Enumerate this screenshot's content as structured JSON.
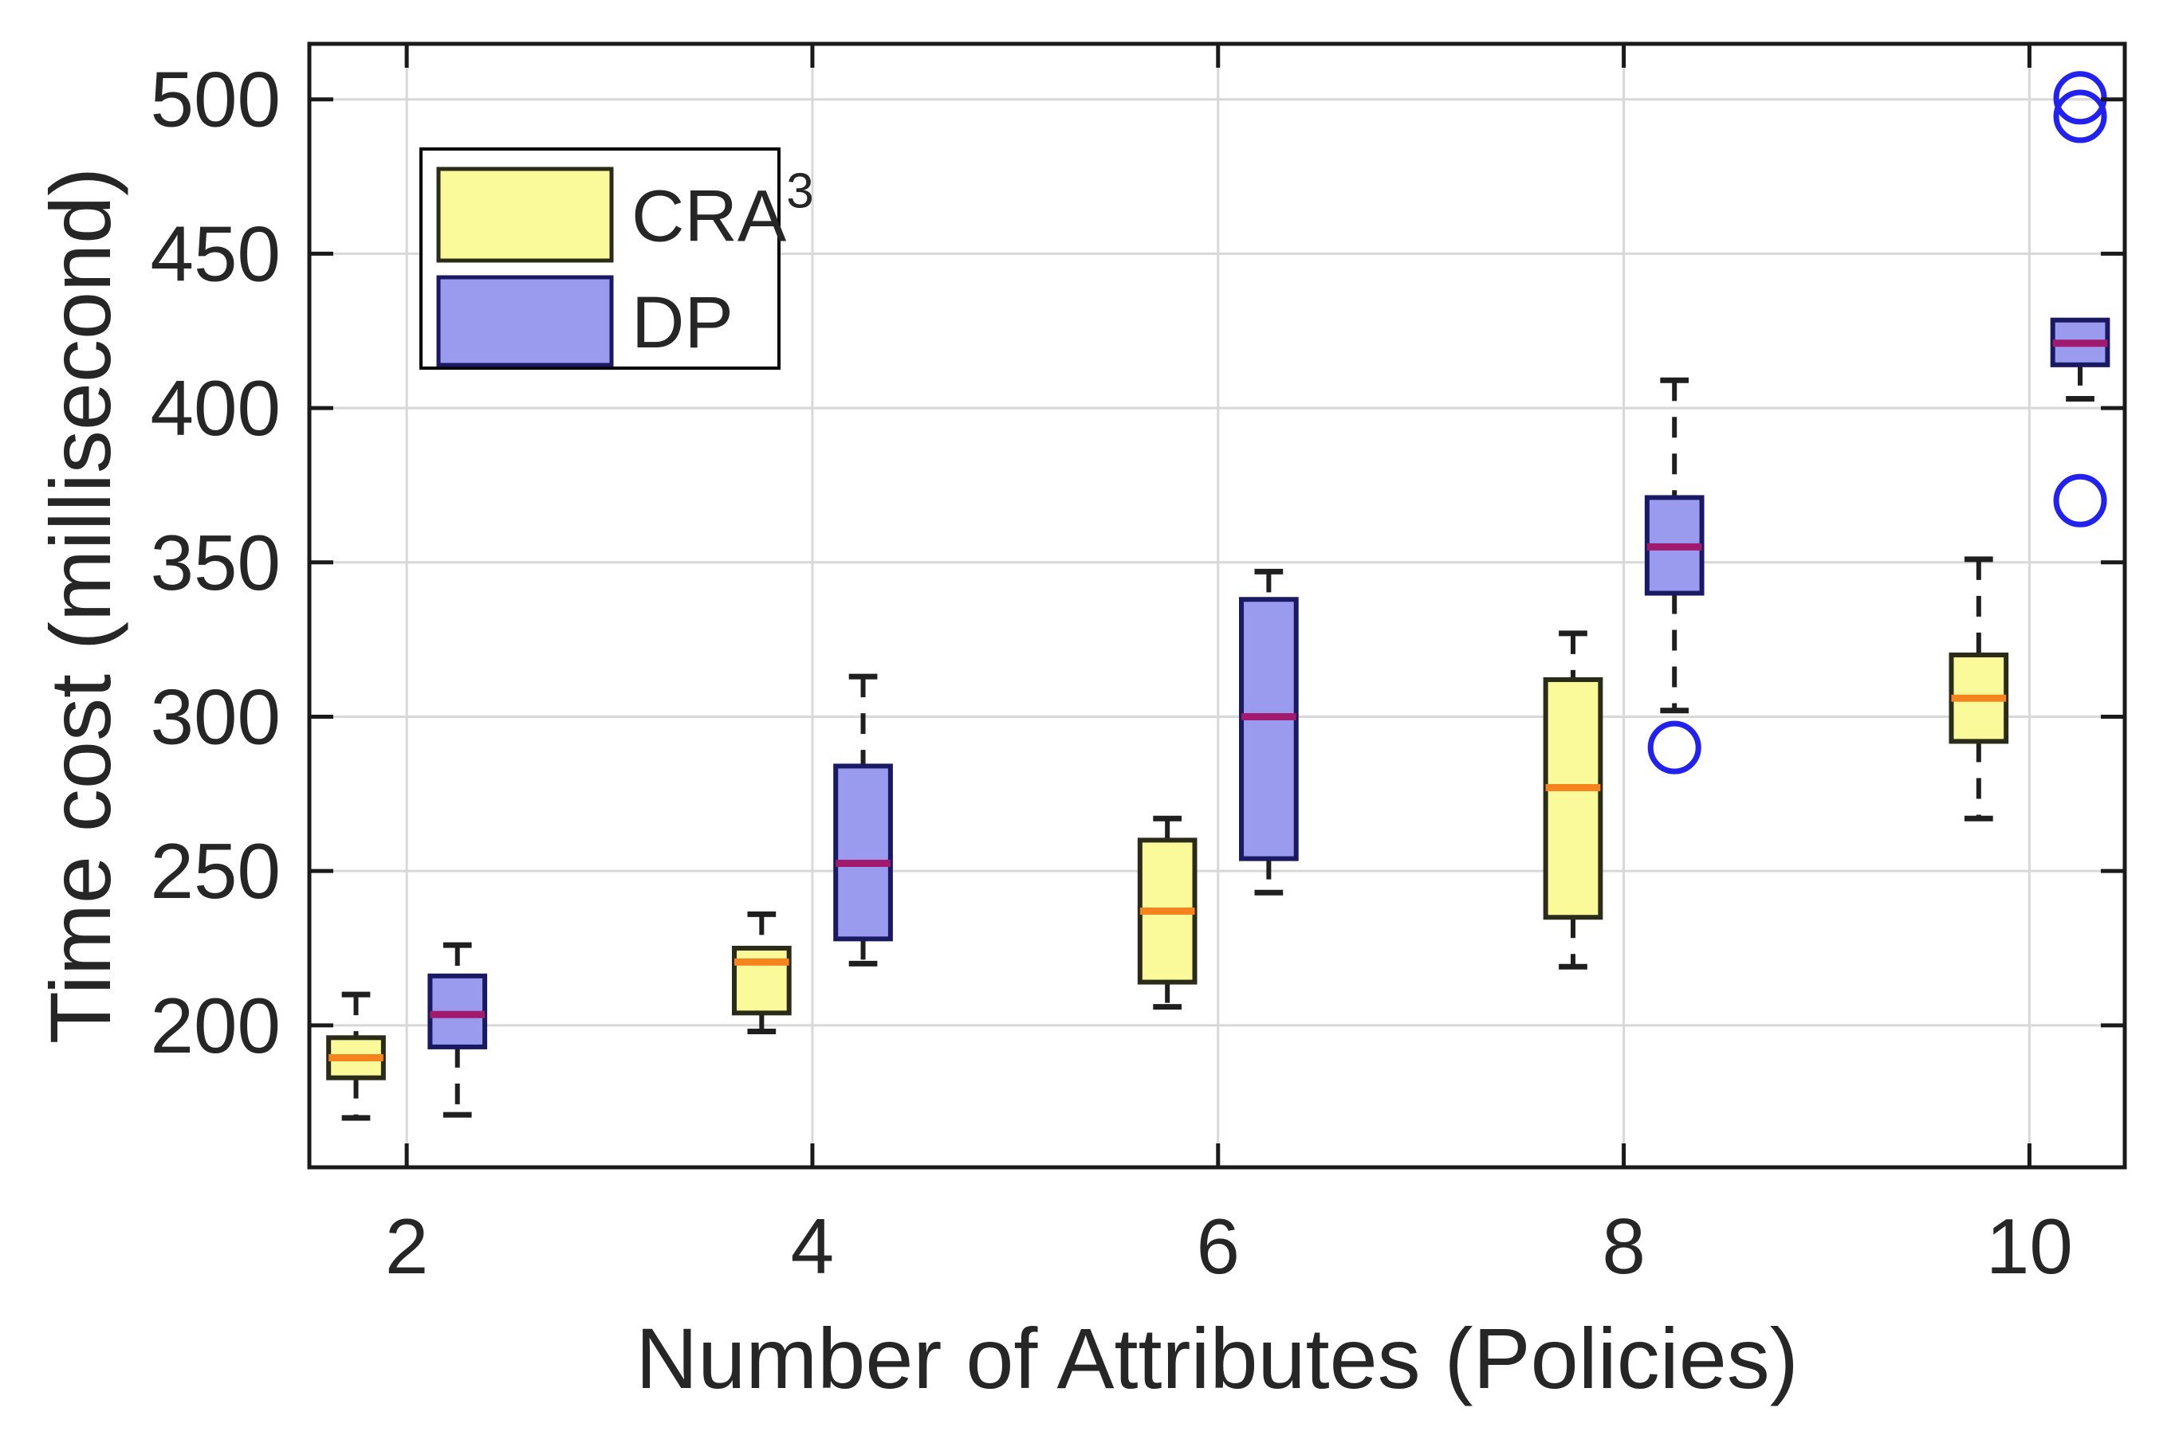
{
  "figure": {
    "kind": "matlab-style grouped boxplot",
    "background": "#ffffff"
  },
  "axes": {
    "xlabel": "Number of Attributes (Policies)",
    "ylabel": "Time cost (millisecond)",
    "x_ticks": [
      2,
      4,
      6,
      8,
      10
    ],
    "x_tick_labels": [
      "2",
      "4",
      "6",
      "8",
      "10"
    ],
    "y_ticks": [
      200,
      250,
      300,
      350,
      400,
      450,
      500
    ],
    "y_tick_labels": [
      "200",
      "250",
      "300",
      "350",
      "400",
      "450",
      "500"
    ],
    "xlim": [
      1.52,
      10.47
    ],
    "ylim": [
      154,
      518
    ],
    "grid": true,
    "box_on": true,
    "tick_direction": "in"
  },
  "colors": {
    "background": "#ffffff",
    "grid": "#d8d8d8",
    "spine": "#1a1a1a",
    "tick": "#1a1a1a",
    "text": "#262626",
    "whisker": "#1f1f1f",
    "outlier_stroke": "#2222ee"
  },
  "legend": {
    "position": "upper-left",
    "entries": [
      {
        "label": "CRA",
        "superscript": "3",
        "swatch_fill": "#fafa9b",
        "swatch_edge": "#2b2b1a"
      },
      {
        "label": "DP",
        "superscript": "",
        "swatch_fill": "#9a9aef",
        "swatch_edge": "#191964"
      }
    ]
  },
  "chart_data": {
    "type": "boxplot",
    "title": "",
    "xlabel": "Number of Attributes (Policies)",
    "ylabel": "Time cost (millisecond)",
    "categories": [
      2,
      4,
      6,
      8,
      10
    ],
    "group_offset_units": 0.25,
    "box_width_units": 0.27,
    "series": [
      {
        "name": "CRA3",
        "legend_label": "CRA",
        "legend_superscript": "3",
        "fill": "#fafa9b",
        "edge": "#2b2b1a",
        "median_color": "#f5831e",
        "side": -1,
        "boxes": [
          {
            "x": 2,
            "whislo": 170,
            "q1": 183,
            "med": 189.5,
            "q3": 196,
            "whishi": 210,
            "outliers": []
          },
          {
            "x": 4,
            "whislo": 198,
            "q1": 204,
            "med": 220.5,
            "q3": 225,
            "whishi": 236,
            "outliers": []
          },
          {
            "x": 6,
            "whislo": 206,
            "q1": 214,
            "med": 237,
            "q3": 260,
            "whishi": 267,
            "outliers": []
          },
          {
            "x": 8,
            "whislo": 219,
            "q1": 235,
            "med": 277,
            "q3": 312,
            "whishi": 327,
            "outliers": []
          },
          {
            "x": 10,
            "whislo": 267,
            "q1": 292,
            "med": 306,
            "q3": 320,
            "whishi": 351,
            "outliers": []
          }
        ]
      },
      {
        "name": "DP",
        "legend_label": "DP",
        "legend_superscript": "",
        "fill": "#9a9aef",
        "edge": "#191964",
        "median_color": "#a11a6e",
        "side": 1,
        "boxes": [
          {
            "x": 2,
            "whislo": 171,
            "q1": 193,
            "med": 203.5,
            "q3": 216,
            "whishi": 226,
            "outliers": []
          },
          {
            "x": 4,
            "whislo": 220,
            "q1": 228,
            "med": 252.5,
            "q3": 284,
            "whishi": 313,
            "outliers": []
          },
          {
            "x": 6,
            "whislo": 243,
            "q1": 254,
            "med": 300,
            "q3": 338,
            "whishi": 347,
            "outliers": []
          },
          {
            "x": 8,
            "whislo": 302,
            "q1": 340,
            "med": 355,
            "q3": 371,
            "whishi": 409,
            "outliers": [
              290
            ]
          },
          {
            "x": 10,
            "whislo": 403,
            "q1": 414,
            "med": 421,
            "q3": 428.5,
            "whishi": 428.5,
            "outliers": [
              370,
              494.5,
              500.5
            ]
          }
        ]
      }
    ]
  }
}
